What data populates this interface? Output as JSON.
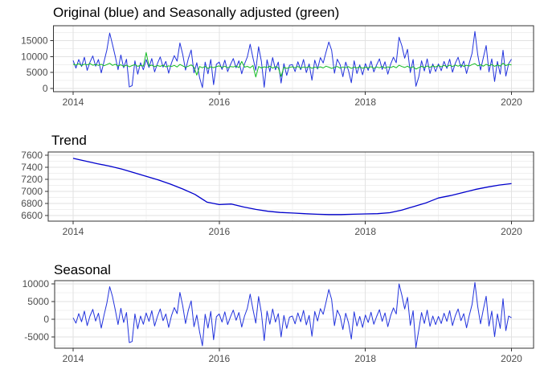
{
  "figure": {
    "background": "#ffffff",
    "panel_background": "#ffffff",
    "panel_border_color": "#333333",
    "grid_major_color": "#e2e2e2",
    "grid_minor_color": "#f0f0f0",
    "tick_label_color": "#4d4d4d",
    "title_color": "#000000"
  },
  "colors": {
    "line_blue": "#2233DD",
    "trend_blue": "#0000CC",
    "line_green": "#11BB22"
  },
  "chart_data": [
    {
      "id": "original-vs-adjusted",
      "type": "line",
      "title": "Original (blue) and Seasonally adjusted (green)",
      "xlabel": "",
      "ylabel": "",
      "x_ticks": [
        2014,
        2016,
        2018,
        2020
      ],
      "x_minor_ticks": [
        2015,
        2017,
        2019
      ],
      "y_ticks": [
        0,
        5000,
        10000,
        15000
      ],
      "y_minor_ticks": [
        2500,
        7500,
        12500,
        17500
      ],
      "ylim": [
        -1000,
        19700
      ],
      "xlim": [
        2013.72,
        2020.3
      ],
      "grid": true,
      "legend": "none",
      "series": [
        {
          "name": "Original",
          "color_key": "line_blue",
          "x_start": 2014.0,
          "x_end": 2020.0,
          "values": [
            8800,
            6400,
            9100,
            6900,
            9800,
            5700,
            8300,
            10200,
            7000,
            9100,
            4900,
            8500,
            12100,
            17400,
            13800,
            10000,
            5900,
            10500,
            6500,
            9200,
            500,
            900,
            8700,
            4500,
            8100,
            5900,
            9100,
            6600,
            9400,
            5200,
            7800,
            9900,
            6700,
            8500,
            4800,
            8000,
            10300,
            8600,
            14300,
            10700,
            5800,
            9400,
            12100,
            4900,
            8100,
            3400,
            300,
            8300,
            4600,
            9100,
            1200,
            7600,
            8300,
            6000,
            8900,
            5300,
            7500,
            9400,
            6500,
            8700,
            4600,
            7700,
            9900,
            13900,
            9600,
            5700,
            13100,
            8500,
            400,
            9000,
            5300,
            9700,
            5900,
            8300,
            1700,
            7800,
            4100,
            7300,
            7500,
            5300,
            8400,
            5900,
            9100,
            5000,
            7700,
            2600,
            8900,
            6100,
            9700,
            8000,
            11400,
            14600,
            12000,
            4800,
            9200,
            7500,
            3700,
            8300,
            5600,
            1800,
            8700,
            4700,
            7400,
            4300,
            7800,
            5700,
            8600,
            5200,
            7400,
            9300,
            6000,
            8400,
            4500,
            7600,
            9800,
            8100,
            16100,
            13400,
            9500,
            12300,
            5000,
            9100,
            700,
            3600,
            8700,
            5500,
            9300,
            4700,
            7700,
            5300,
            7700,
            5600,
            8500,
            6300,
            9200,
            5100,
            7900,
            9800,
            6600,
            8600,
            4700,
            8000,
            11100,
            17900,
            10600,
            5800,
            9700,
            13500,
            5200,
            9300,
            2200,
            8500,
            4500,
            12000,
            3900,
            7800,
            9200
          ]
        },
        {
          "name": "Seasonally adjusted",
          "color_key": "line_green",
          "x_start": 2014.0,
          "x_end": 2020.0,
          "values": [
            7600,
            7350,
            7750,
            7200,
            7650,
            7400,
            7800,
            7300,
            7550,
            7250,
            7600,
            7150,
            7500,
            7900,
            7250,
            7600,
            7050,
            7450,
            6900,
            7350,
            6800,
            7200,
            7500,
            6950,
            7300,
            7000,
            11300,
            7050,
            7350,
            6850,
            7200,
            6950,
            7300,
            6800,
            7100,
            6900,
            7250,
            6750,
            7550,
            7100,
            6650,
            7000,
            7400,
            6700,
            4200,
            6900,
            6500,
            6950,
            6300,
            6800,
            6550,
            6850,
            7100,
            6600,
            7000,
            6500,
            6900,
            6750,
            7050,
            6550,
            8500,
            6700,
            6950,
            6500,
            7200,
            3600,
            6900,
            6450,
            6800,
            6600,
            7000,
            6400,
            6850,
            6550,
            3800,
            6700,
            6300,
            6650,
            6800,
            6500,
            6900,
            6400,
            6750,
            6550,
            6850,
            6350,
            6700,
            6500,
            6800,
            6450,
            7000,
            6700,
            6300,
            6650,
            6900,
            6400,
            6750,
            6500,
            6850,
            6300,
            6700,
            6450,
            6800,
            6350,
            6700,
            6450,
            6850,
            6350,
            6750,
            6500,
            6900,
            6400,
            6800,
            6550,
            6950,
            6500,
            7300,
            6900,
            6600,
            7000,
            6450,
            6850,
            6100,
            6550,
            6950,
            6600,
            7050,
            6650,
            7100,
            6750,
            7200,
            6800,
            7250,
            6850,
            7300,
            6900,
            7350,
            7000,
            7400,
            6950,
            7300,
            7050,
            7500,
            7800,
            7100,
            7450,
            7000,
            7600,
            7150,
            7500,
            6950,
            7400,
            7050,
            7900,
            7200,
            7550,
            7400
          ]
        }
      ]
    },
    {
      "id": "trend",
      "type": "line",
      "title": "Trend",
      "xlabel": "",
      "ylabel": "",
      "x_ticks": [
        2014,
        2016,
        2018,
        2020
      ],
      "x_minor_ticks": [
        2015,
        2017,
        2019
      ],
      "y_ticks": [
        6600,
        6800,
        7000,
        7200,
        7400,
        7600
      ],
      "y_minor_ticks": [
        6700,
        6900,
        7100,
        7300,
        7500
      ],
      "ylim": [
        6505,
        7655
      ],
      "xlim": [
        2013.66,
        2020.3
      ],
      "grid": true,
      "legend": "none",
      "series": [
        {
          "name": "Trend",
          "color_key": "trend_blue",
          "x_start": 2014.0,
          "x_end": 2020.0,
          "values": [
            7550,
            7505,
            7460,
            7420,
            7370,
            7310,
            7250,
            7190,
            7120,
            7040,
            6950,
            6820,
            6780,
            6790,
            6740,
            6700,
            6670,
            6650,
            6640,
            6630,
            6620,
            6615,
            6615,
            6620,
            6625,
            6630,
            6645,
            6690,
            6750,
            6810,
            6890,
            6930,
            6980,
            7030,
            7070,
            7105,
            7130
          ]
        }
      ]
    },
    {
      "id": "seasonal",
      "type": "line",
      "title": "Seasonal",
      "xlabel": "",
      "ylabel": "",
      "x_ticks": [
        2014,
        2016,
        2018,
        2020
      ],
      "x_minor_ticks": [
        2015,
        2017,
        2019
      ],
      "y_ticks": [
        -5000,
        0,
        5000,
        10000
      ],
      "y_minor_ticks": [
        -7500,
        -2500,
        2500,
        7500
      ],
      "ylim": [
        -8180,
        10910
      ],
      "xlim": [
        2013.75,
        2020.3
      ],
      "grid": true,
      "legend": "none",
      "series": [
        {
          "name": "Seasonal",
          "color_key": "line_blue",
          "x_start": 2014.0,
          "x_end": 2020.0,
          "values": [
            400,
            -1100,
            1600,
            -700,
            2300,
            -1800,
            900,
            2800,
            -500,
            1700,
            -2500,
            1200,
            4600,
            9200,
            6400,
            2600,
            -1500,
            3100,
            -900,
            1900,
            -6600,
            -6300,
            1500,
            -2700,
            900,
            -1400,
            1800,
            -600,
            2400,
            -1900,
            800,
            2900,
            -400,
            1500,
            -2300,
            1000,
            3300,
            1600,
            7600,
            3800,
            -1200,
            2600,
            5200,
            -2100,
            1200,
            -3600,
            -7500,
            1400,
            -2500,
            2200,
            -5800,
            700,
            1500,
            -800,
            2100,
            -1500,
            700,
            2600,
            -300,
            1900,
            -2200,
            900,
            3100,
            7100,
            2800,
            -1100,
            6400,
            1800,
            -6000,
            2300,
            -1400,
            2900,
            -800,
            1600,
            -5000,
            1100,
            -2600,
            600,
            900,
            -1300,
            1800,
            -700,
            2500,
            -1600,
            1100,
            -4800,
            2200,
            -500,
            3000,
            1400,
            4800,
            8400,
            5600,
            -1800,
            2600,
            900,
            -2900,
            1700,
            -1000,
            -5600,
            2100,
            -1900,
            800,
            -2300,
            1200,
            -900,
            2000,
            -1400,
            800,
            2700,
            -600,
            1800,
            -2100,
            1000,
            3200,
            1500,
            10000,
            6800,
            2900,
            6200,
            -1700,
            2400,
            -8000,
            -3100,
            1900,
            -1200,
            2600,
            -2000,
            900,
            -1500,
            800,
            -1200,
            1700,
            -600,
            2400,
            -1800,
            1000,
            2900,
            -400,
            1600,
            -2400,
            1100,
            4200,
            10400,
            3600,
            -1300,
            2800,
            6500,
            -1900,
            2300,
            -4900,
            1500,
            -2600,
            5800,
            -3200,
            900,
            400
          ]
        }
      ]
    }
  ]
}
